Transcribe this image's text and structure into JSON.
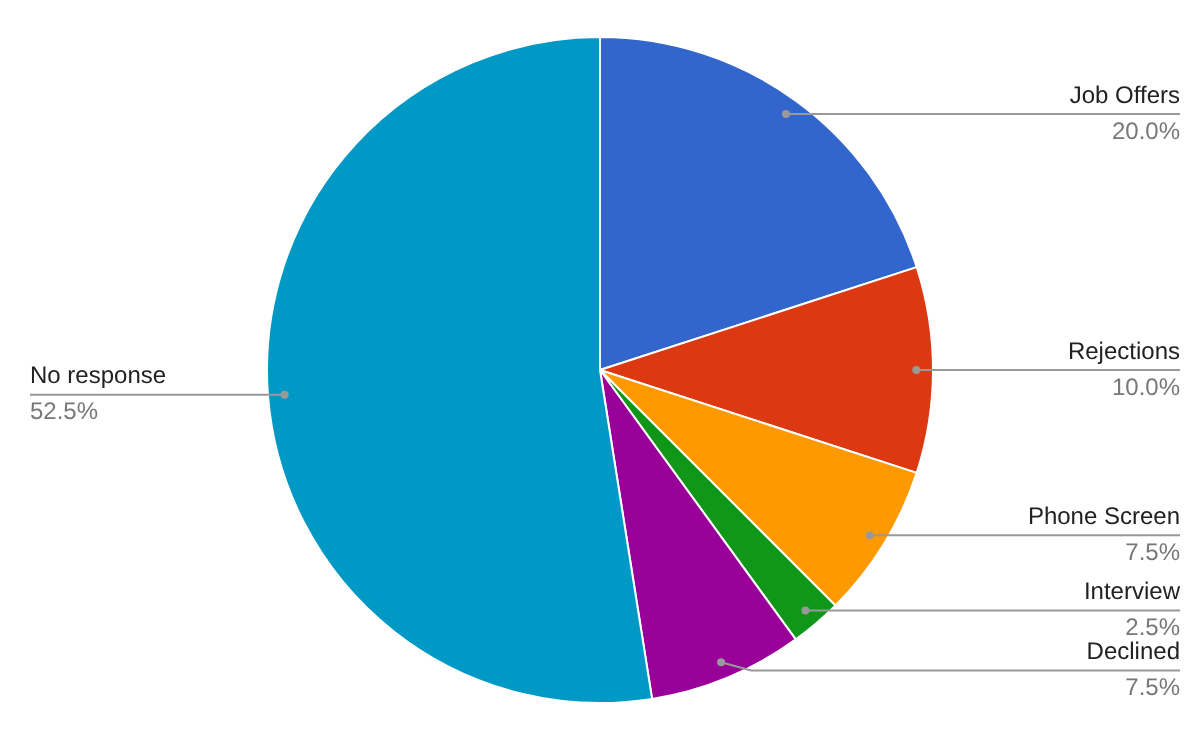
{
  "chart_data": {
    "type": "pie",
    "categories": [
      "Job Offers",
      "Rejections",
      "Phone Screen",
      "Interview",
      "Declined",
      "No response"
    ],
    "values": [
      20,
      10,
      7.5,
      2.5,
      7.5,
      52.5
    ],
    "value_labels": [
      "20.0%",
      "10.0%",
      "7.5%",
      "2.5%",
      "7.5%",
      "52.5%"
    ],
    "colors": [
      "#3366cc",
      "#dc3912",
      "#ff9900",
      "#109618",
      "#990099",
      "#0099c6"
    ],
    "legend": false
  }
}
